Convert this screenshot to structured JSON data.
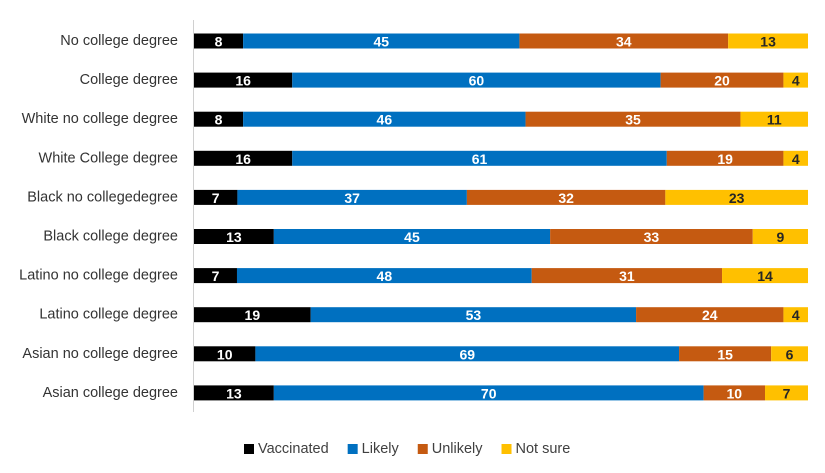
{
  "chart_data": {
    "type": "bar",
    "orientation": "horizontal",
    "stacked": "100%",
    "categories": [
      "No college degree",
      "College degree",
      "White no college degree",
      "White College degree",
      "Black no collegedegree",
      "Black college degree",
      "Latino no college degree",
      "Latino college degree",
      "Asian no college degree",
      "Asian college degree"
    ],
    "series": [
      {
        "name": "Vaccinated",
        "color": "#000000",
        "label_color": "#ffffff",
        "values": [
          8,
          16,
          8,
          16,
          7,
          13,
          7,
          19,
          10,
          13
        ]
      },
      {
        "name": "Likely",
        "color": "#0070C0",
        "label_color": "#ffffff",
        "values": [
          45,
          60,
          46,
          61,
          37,
          45,
          48,
          53,
          69,
          70
        ]
      },
      {
        "name": "Unlikely",
        "color": "#C55A11",
        "label_color": "#ffffff",
        "values": [
          34,
          20,
          35,
          19,
          32,
          33,
          31,
          24,
          15,
          10
        ]
      },
      {
        "name": "Not sure",
        "color": "#FFC000",
        "label_color": "#262626",
        "values": [
          13,
          4,
          11,
          4,
          23,
          9,
          14,
          4,
          6,
          7
        ]
      }
    ],
    "data_labels": true,
    "legend_position": "bottom",
    "grid": false
  }
}
